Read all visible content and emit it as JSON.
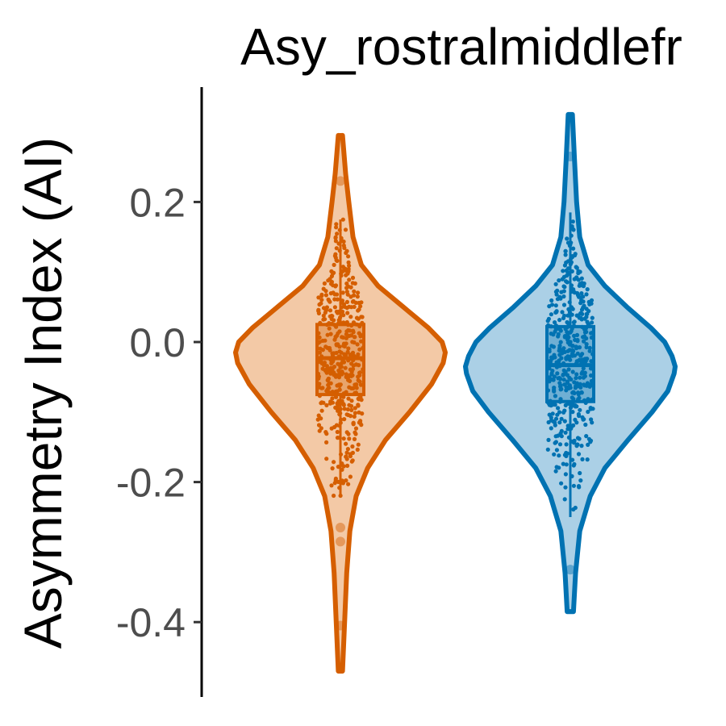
{
  "chart_data": {
    "type": "violin",
    "title": "Asy_rostralmiddlefr",
    "xlabel": "",
    "ylabel": "Asymmetry Index (AI)",
    "ylim": [
      -0.48,
      0.36
    ],
    "yticks": [
      0.2,
      0.0,
      -0.2,
      -0.4
    ],
    "ytick_labels": [
      "0.2",
      "0.0",
      "-0.2",
      "-0.4"
    ],
    "grid": false,
    "legend": "none",
    "series": [
      {
        "color": "#d55e00",
        "fill": "#f3c9a6",
        "min": -0.47,
        "max": 0.295,
        "box": {
          "q1": -0.075,
          "median": -0.023,
          "q3": 0.025
        },
        "whiskers": [
          -0.22,
          0.175
        ],
        "outliers": [
          0.23,
          -0.265,
          -0.285,
          -0.405
        ],
        "density_profile": [
          [
            -0.47,
            0.02
          ],
          [
            -0.4,
            0.04
          ],
          [
            -0.33,
            0.06
          ],
          [
            -0.27,
            0.09
          ],
          [
            -0.22,
            0.15
          ],
          [
            -0.18,
            0.26
          ],
          [
            -0.14,
            0.43
          ],
          [
            -0.1,
            0.66
          ],
          [
            -0.06,
            0.87
          ],
          [
            -0.03,
            0.98
          ],
          [
            -0.015,
            1.0
          ],
          [
            0.0,
            0.97
          ],
          [
            0.02,
            0.84
          ],
          [
            0.05,
            0.6
          ],
          [
            0.08,
            0.36
          ],
          [
            0.11,
            0.2
          ],
          [
            0.15,
            0.12
          ],
          [
            0.2,
            0.08
          ],
          [
            0.24,
            0.05
          ],
          [
            0.295,
            0.02
          ]
        ]
      },
      {
        "color": "#0072b2",
        "fill": "#abd0e6",
        "min": -0.385,
        "max": 0.325,
        "box": {
          "q1": -0.085,
          "median": -0.033,
          "q3": 0.022
        },
        "whiskers": [
          -0.25,
          0.185
        ],
        "outliers": [
          0.265,
          -0.325
        ],
        "density_profile": [
          [
            -0.385,
            0.03
          ],
          [
            -0.33,
            0.05
          ],
          [
            -0.27,
            0.09
          ],
          [
            -0.22,
            0.19
          ],
          [
            -0.18,
            0.33
          ],
          [
            -0.14,
            0.55
          ],
          [
            -0.1,
            0.78
          ],
          [
            -0.07,
            0.93
          ],
          [
            -0.045,
            0.99
          ],
          [
            -0.035,
            1.0
          ],
          [
            -0.02,
            0.97
          ],
          [
            0.0,
            0.9
          ],
          [
            0.02,
            0.77
          ],
          [
            0.05,
            0.54
          ],
          [
            0.08,
            0.33
          ],
          [
            0.11,
            0.17
          ],
          [
            0.15,
            0.09
          ],
          [
            0.2,
            0.06
          ],
          [
            0.26,
            0.04
          ],
          [
            0.325,
            0.02
          ]
        ]
      }
    ]
  }
}
